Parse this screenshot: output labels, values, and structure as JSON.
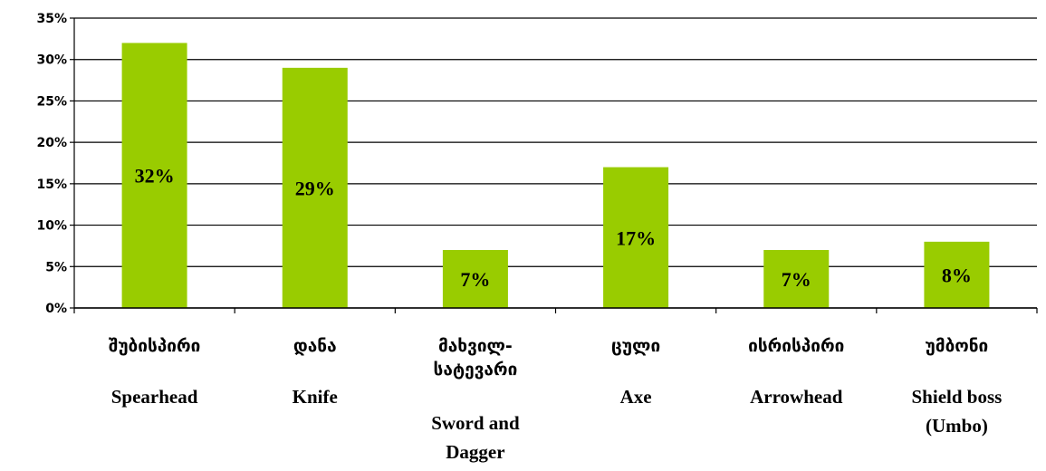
{
  "chart_data": {
    "type": "bar",
    "title": "",
    "xlabel": "",
    "ylabel": "",
    "ylim": [
      0,
      35
    ],
    "y_ticks": [
      0,
      5,
      10,
      15,
      20,
      25,
      30,
      35
    ],
    "y_tick_labels": [
      "0%",
      "5%",
      "10%",
      "15%",
      "20%",
      "25%",
      "30%",
      "35%"
    ],
    "grid": true,
    "legend": "none",
    "bar_color": "#99cc00",
    "categories": [
      {
        "native": "შუბისპირი",
        "english": [
          "Spearhead"
        ]
      },
      {
        "native": "დანა",
        "english": [
          "Knife"
        ]
      },
      {
        "native": "მახვილ-\nსატევარი",
        "english": [
          "Sword and",
          "Dagger"
        ]
      },
      {
        "native": "ცული",
        "english": [
          "Axe"
        ]
      },
      {
        "native": "ისრისპირი",
        "english": [
          "Arrowhead"
        ]
      },
      {
        "native": "უმბონი",
        "english": [
          "Shield boss",
          "(Umbo)"
        ]
      }
    ],
    "values": [
      32,
      29,
      7,
      17,
      7,
      8
    ],
    "data_labels": [
      "32%",
      "29%",
      "7%",
      "17%",
      "7%",
      "8%"
    ]
  }
}
